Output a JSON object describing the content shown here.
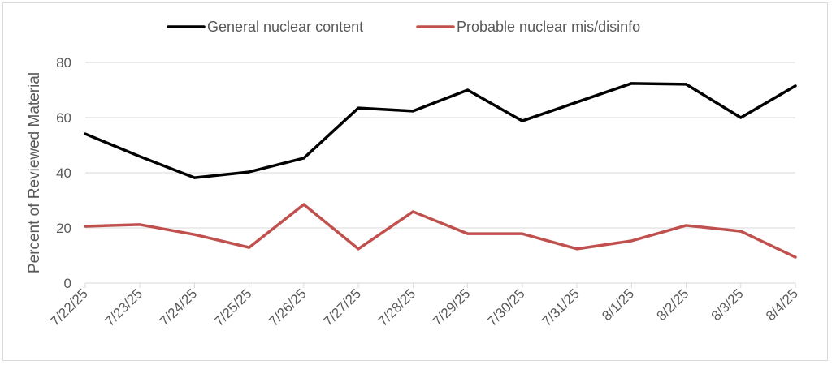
{
  "chart_data": {
    "type": "line",
    "title": "",
    "xlabel": "",
    "ylabel": "Percent of Reviewed Material",
    "ylim": [
      0,
      80
    ],
    "yticks": [
      0,
      20,
      40,
      60,
      80
    ],
    "grid": true,
    "legend_position": "top-center",
    "categories": [
      "7/22/25",
      "7/23/25",
      "7/24/25",
      "7/25/25",
      "7/26/25",
      "7/27/25",
      "7/28/25",
      "7/29/25",
      "7/30/25",
      "7/31/25",
      "8/1/25",
      "8/2/25",
      "8/3/25",
      "8/4/25"
    ],
    "series": [
      {
        "name": "General nuclear content",
        "color": "#000000",
        "values": [
          54.1,
          45.9,
          38.2,
          40.3,
          45.3,
          63.5,
          62.4,
          70.0,
          58.8,
          65.6,
          72.4,
          72.1,
          60.0,
          71.5
        ]
      },
      {
        "name": "Probable nuclear mis/disinfo",
        "color": "#c0504d",
        "values": [
          20.6,
          21.2,
          17.6,
          12.9,
          28.5,
          12.4,
          25.9,
          17.9,
          17.9,
          12.4,
          15.3,
          20.9,
          18.8,
          9.4
        ]
      }
    ]
  }
}
